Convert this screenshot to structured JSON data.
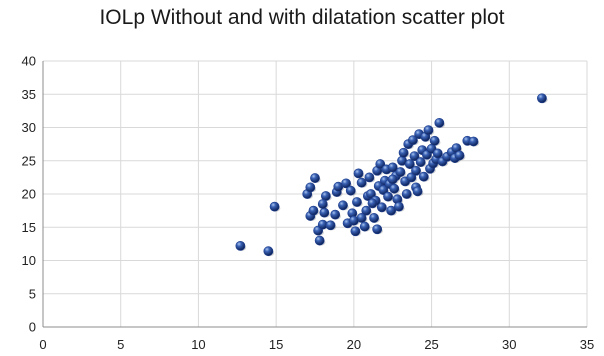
{
  "chart_data": {
    "type": "scatter",
    "title": "IOLp Without and with dilatation scatter plot",
    "xlabel": "",
    "ylabel": "",
    "xlim": [
      0,
      35
    ],
    "ylim": [
      0,
      40
    ],
    "x_ticks": [
      0,
      5,
      10,
      15,
      20,
      25,
      30,
      35
    ],
    "y_ticks": [
      0,
      5,
      10,
      15,
      20,
      25,
      30,
      35,
      40
    ],
    "grid": true,
    "legend": "none",
    "marker_color": "#1f3f8f",
    "points": [
      [
        12.7,
        12.2
      ],
      [
        14.5,
        11.4
      ],
      [
        14.9,
        18.1
      ],
      [
        17.0,
        20.0
      ],
      [
        17.2,
        21.0
      ],
      [
        17.5,
        22.4
      ],
      [
        17.2,
        16.7
      ],
      [
        17.4,
        17.5
      ],
      [
        17.7,
        14.5
      ],
      [
        17.8,
        13.0
      ],
      [
        18.0,
        15.4
      ],
      [
        18.1,
        17.2
      ],
      [
        18.2,
        19.7
      ],
      [
        18.0,
        18.5
      ],
      [
        18.5,
        15.3
      ],
      [
        18.8,
        16.9
      ],
      [
        18.9,
        20.3
      ],
      [
        19.0,
        21.1
      ],
      [
        19.3,
        18.3
      ],
      [
        19.5,
        21.6
      ],
      [
        19.8,
        20.5
      ],
      [
        19.6,
        15.6
      ],
      [
        19.9,
        17.1
      ],
      [
        20.1,
        14.4
      ],
      [
        20.2,
        18.8
      ],
      [
        20.3,
        23.1
      ],
      [
        20.5,
        16.4
      ],
      [
        20.5,
        21.7
      ],
      [
        20.7,
        15.1
      ],
      [
        20.8,
        17.5
      ],
      [
        20.9,
        19.7
      ],
      [
        21.0,
        22.5
      ],
      [
        21.1,
        20.0
      ],
      [
        21.3,
        16.4
      ],
      [
        21.4,
        19.0
      ],
      [
        21.5,
        23.5
      ],
      [
        21.5,
        14.7
      ],
      [
        21.6,
        21.2
      ],
      [
        21.7,
        24.5
      ],
      [
        21.8,
        18.0
      ],
      [
        21.9,
        20.6
      ],
      [
        22.0,
        22.0
      ],
      [
        22.1,
        23.7
      ],
      [
        22.2,
        19.6
      ],
      [
        22.3,
        21.5
      ],
      [
        22.4,
        17.5
      ],
      [
        22.5,
        24.0
      ],
      [
        22.6,
        20.8
      ],
      [
        22.7,
        22.7
      ],
      [
        22.8,
        19.2
      ],
      [
        22.9,
        18.1
      ],
      [
        23.0,
        23.3
      ],
      [
        23.1,
        25.0
      ],
      [
        23.2,
        26.2
      ],
      [
        23.3,
        21.9
      ],
      [
        23.4,
        20.0
      ],
      [
        23.5,
        27.5
      ],
      [
        23.6,
        24.5
      ],
      [
        23.7,
        22.5
      ],
      [
        23.8,
        28.1
      ],
      [
        23.9,
        25.7
      ],
      [
        24.0,
        21.0
      ],
      [
        24.0,
        23.5
      ],
      [
        24.1,
        20.4
      ],
      [
        24.2,
        29.0
      ],
      [
        24.3,
        24.8
      ],
      [
        24.4,
        26.6
      ],
      [
        24.5,
        22.6
      ],
      [
        24.6,
        28.6
      ],
      [
        24.7,
        25.9
      ],
      [
        24.8,
        29.6
      ],
      [
        24.9,
        23.8
      ],
      [
        25.0,
        26.8
      ],
      [
        25.1,
        24.6
      ],
      [
        25.2,
        28.0
      ],
      [
        25.3,
        25.2
      ],
      [
        25.4,
        26.1
      ],
      [
        25.5,
        30.7
      ],
      [
        25.7,
        24.9
      ],
      [
        26.0,
        25.6
      ],
      [
        26.3,
        26.3
      ],
      [
        26.5,
        25.4
      ],
      [
        26.6,
        26.9
      ],
      [
        26.8,
        25.8
      ],
      [
        27.3,
        28.0
      ],
      [
        27.7,
        27.9
      ],
      [
        32.1,
        34.4
      ],
      [
        20.0,
        16.0
      ],
      [
        21.2,
        18.6
      ],
      [
        22.5,
        22.2
      ]
    ]
  }
}
